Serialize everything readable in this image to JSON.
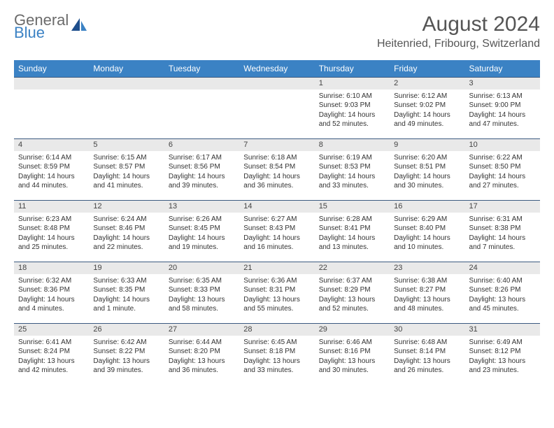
{
  "brand": {
    "general": "General",
    "blue": "Blue"
  },
  "title": {
    "month": "August 2024",
    "location": "Heitenried, Fribourg, Switzerland"
  },
  "colors": {
    "header_bg": "#3b82c4",
    "header_text": "#ffffff",
    "border": "#3b5a80",
    "numrow_bg": "#e9e9e9",
    "body_text": "#333333"
  },
  "weekdays": [
    "Sunday",
    "Monday",
    "Tuesday",
    "Wednesday",
    "Thursday",
    "Friday",
    "Saturday"
  ],
  "weeks": [
    [
      null,
      null,
      null,
      null,
      {
        "n": "1",
        "sr": "Sunrise: 6:10 AM",
        "ss": "Sunset: 9:03 PM",
        "dl": "Daylight: 14 hours and 52 minutes."
      },
      {
        "n": "2",
        "sr": "Sunrise: 6:12 AM",
        "ss": "Sunset: 9:02 PM",
        "dl": "Daylight: 14 hours and 49 minutes."
      },
      {
        "n": "3",
        "sr": "Sunrise: 6:13 AM",
        "ss": "Sunset: 9:00 PM",
        "dl": "Daylight: 14 hours and 47 minutes."
      }
    ],
    [
      {
        "n": "4",
        "sr": "Sunrise: 6:14 AM",
        "ss": "Sunset: 8:59 PM",
        "dl": "Daylight: 14 hours and 44 minutes."
      },
      {
        "n": "5",
        "sr": "Sunrise: 6:15 AM",
        "ss": "Sunset: 8:57 PM",
        "dl": "Daylight: 14 hours and 41 minutes."
      },
      {
        "n": "6",
        "sr": "Sunrise: 6:17 AM",
        "ss": "Sunset: 8:56 PM",
        "dl": "Daylight: 14 hours and 39 minutes."
      },
      {
        "n": "7",
        "sr": "Sunrise: 6:18 AM",
        "ss": "Sunset: 8:54 PM",
        "dl": "Daylight: 14 hours and 36 minutes."
      },
      {
        "n": "8",
        "sr": "Sunrise: 6:19 AM",
        "ss": "Sunset: 8:53 PM",
        "dl": "Daylight: 14 hours and 33 minutes."
      },
      {
        "n": "9",
        "sr": "Sunrise: 6:20 AM",
        "ss": "Sunset: 8:51 PM",
        "dl": "Daylight: 14 hours and 30 minutes."
      },
      {
        "n": "10",
        "sr": "Sunrise: 6:22 AM",
        "ss": "Sunset: 8:50 PM",
        "dl": "Daylight: 14 hours and 27 minutes."
      }
    ],
    [
      {
        "n": "11",
        "sr": "Sunrise: 6:23 AM",
        "ss": "Sunset: 8:48 PM",
        "dl": "Daylight: 14 hours and 25 minutes."
      },
      {
        "n": "12",
        "sr": "Sunrise: 6:24 AM",
        "ss": "Sunset: 8:46 PM",
        "dl": "Daylight: 14 hours and 22 minutes."
      },
      {
        "n": "13",
        "sr": "Sunrise: 6:26 AM",
        "ss": "Sunset: 8:45 PM",
        "dl": "Daylight: 14 hours and 19 minutes."
      },
      {
        "n": "14",
        "sr": "Sunrise: 6:27 AM",
        "ss": "Sunset: 8:43 PM",
        "dl": "Daylight: 14 hours and 16 minutes."
      },
      {
        "n": "15",
        "sr": "Sunrise: 6:28 AM",
        "ss": "Sunset: 8:41 PM",
        "dl": "Daylight: 14 hours and 13 minutes."
      },
      {
        "n": "16",
        "sr": "Sunrise: 6:29 AM",
        "ss": "Sunset: 8:40 PM",
        "dl": "Daylight: 14 hours and 10 minutes."
      },
      {
        "n": "17",
        "sr": "Sunrise: 6:31 AM",
        "ss": "Sunset: 8:38 PM",
        "dl": "Daylight: 14 hours and 7 minutes."
      }
    ],
    [
      {
        "n": "18",
        "sr": "Sunrise: 6:32 AM",
        "ss": "Sunset: 8:36 PM",
        "dl": "Daylight: 14 hours and 4 minutes."
      },
      {
        "n": "19",
        "sr": "Sunrise: 6:33 AM",
        "ss": "Sunset: 8:35 PM",
        "dl": "Daylight: 14 hours and 1 minute."
      },
      {
        "n": "20",
        "sr": "Sunrise: 6:35 AM",
        "ss": "Sunset: 8:33 PM",
        "dl": "Daylight: 13 hours and 58 minutes."
      },
      {
        "n": "21",
        "sr": "Sunrise: 6:36 AM",
        "ss": "Sunset: 8:31 PM",
        "dl": "Daylight: 13 hours and 55 minutes."
      },
      {
        "n": "22",
        "sr": "Sunrise: 6:37 AM",
        "ss": "Sunset: 8:29 PM",
        "dl": "Daylight: 13 hours and 52 minutes."
      },
      {
        "n": "23",
        "sr": "Sunrise: 6:38 AM",
        "ss": "Sunset: 8:27 PM",
        "dl": "Daylight: 13 hours and 48 minutes."
      },
      {
        "n": "24",
        "sr": "Sunrise: 6:40 AM",
        "ss": "Sunset: 8:26 PM",
        "dl": "Daylight: 13 hours and 45 minutes."
      }
    ],
    [
      {
        "n": "25",
        "sr": "Sunrise: 6:41 AM",
        "ss": "Sunset: 8:24 PM",
        "dl": "Daylight: 13 hours and 42 minutes."
      },
      {
        "n": "26",
        "sr": "Sunrise: 6:42 AM",
        "ss": "Sunset: 8:22 PM",
        "dl": "Daylight: 13 hours and 39 minutes."
      },
      {
        "n": "27",
        "sr": "Sunrise: 6:44 AM",
        "ss": "Sunset: 8:20 PM",
        "dl": "Daylight: 13 hours and 36 minutes."
      },
      {
        "n": "28",
        "sr": "Sunrise: 6:45 AM",
        "ss": "Sunset: 8:18 PM",
        "dl": "Daylight: 13 hours and 33 minutes."
      },
      {
        "n": "29",
        "sr": "Sunrise: 6:46 AM",
        "ss": "Sunset: 8:16 PM",
        "dl": "Daylight: 13 hours and 30 minutes."
      },
      {
        "n": "30",
        "sr": "Sunrise: 6:48 AM",
        "ss": "Sunset: 8:14 PM",
        "dl": "Daylight: 13 hours and 26 minutes."
      },
      {
        "n": "31",
        "sr": "Sunrise: 6:49 AM",
        "ss": "Sunset: 8:12 PM",
        "dl": "Daylight: 13 hours and 23 minutes."
      }
    ]
  ]
}
